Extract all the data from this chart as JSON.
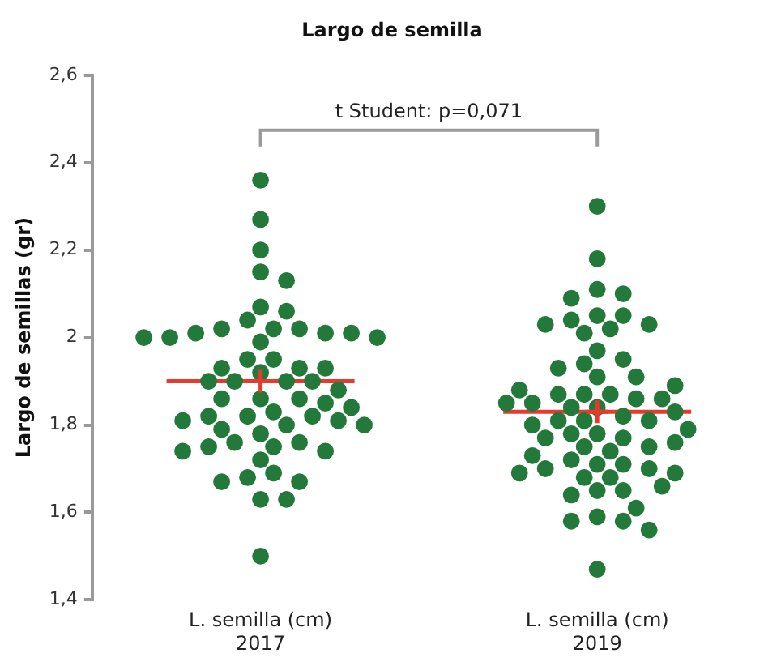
{
  "chart_data": {
    "type": "scatter",
    "title": "Largo de semilla",
    "ylabel": "Largo de semillas (gr)",
    "categories": [
      "L. semilla (cm)\n2017",
      "L. semilla (cm)\n2019"
    ],
    "ylim": [
      1.4,
      2.6
    ],
    "yticks": [
      {
        "value": 1.4,
        "label": "1,4"
      },
      {
        "value": 1.6,
        "label": "1,6"
      },
      {
        "value": 1.8,
        "label": "1,8"
      },
      2,
      {
        "value": 2.2,
        "label": "2,2"
      },
      {
        "value": 2.4,
        "label": "2,4"
      },
      {
        "value": 2.6,
        "label": "2,6"
      }
    ],
    "grid": false,
    "legend": false,
    "annotations": [
      "t Student: p=0,071"
    ],
    "ref_lines": [
      {
        "axis": "y",
        "value": 1.9,
        "color": "#e8392f"
      },
      {
        "axis": "y",
        "value": 1.83,
        "color": "#e8392f"
      }
    ],
    "series": [
      {
        "color": "#23793a",
        "marker": "circle",
        "x": [
          "L. semilla (cm)\n2017",
          "L. semilla (cm)\n2017",
          "L. semilla (cm)\n2017",
          "L. semilla (cm)\n2017",
          "L. semilla (cm)\n2017",
          "L. semilla (cm)\n2017",
          "L. semilla (cm)\n2017",
          "L. semilla (cm)\n2017",
          "L. semilla (cm)\n2017",
          "L. semilla (cm)\n2017",
          "L. semilla (cm)\n2017",
          "L. semilla (cm)\n2017",
          "L. semilla (cm)\n2017",
          "L. semilla (cm)\n2017",
          "L. semilla (cm)\n2017",
          "L. semilla (cm)\n2017",
          "L. semilla (cm)\n2017",
          "L. semilla (cm)\n2017",
          "L. semilla (cm)\n2017",
          "L. semilla (cm)\n2017",
          "L. semilla (cm)\n2017",
          "L. semilla (cm)\n2017",
          "L. semilla (cm)\n2017",
          "L. semilla (cm)\n2017",
          "L. semilla (cm)\n2017",
          "L. semilla (cm)\n2017",
          "L. semilla (cm)\n2017",
          "L. semilla (cm)\n2017",
          "L. semilla (cm)\n2017",
          "L. semilla (cm)\n2017",
          "L. semilla (cm)\n2017",
          "L. semilla (cm)\n2017",
          "L. semilla (cm)\n2017",
          "L. semilla (cm)\n2017",
          "L. semilla (cm)\n2017",
          "L. semilla (cm)\n2017",
          "L. semilla (cm)\n2017",
          "L. semilla (cm)\n2017",
          "L. semilla (cm)\n2017",
          "L. semilla (cm)\n2017",
          "L. semilla (cm)\n2017",
          "L. semilla (cm)\n2017",
          "L. semilla (cm)\n2017",
          "L. semilla (cm)\n2017",
          "L. semilla (cm)\n2017",
          "L. semilla (cm)\n2017",
          "L. semilla (cm)\n2017",
          "L. semilla (cm)\n2017",
          "L. semilla (cm)\n2017",
          "L. semilla (cm)\n2017",
          "L. semilla (cm)\n2017",
          "L. semilla (cm)\n2017",
          "L. semilla (cm)\n2017",
          "L. semilla (cm)\n2017",
          "L. semilla (cm)\n2017",
          "L. semilla (cm)\n2017",
          "L. semilla (cm)\n2017",
          "L. semilla (cm)\n2017"
        ],
        "values": [
          2.36,
          2.27,
          2.2,
          2.15,
          2.13,
          2.07,
          2.06,
          2.04,
          2.02,
          2.02,
          2.02,
          2.01,
          2.01,
          2.01,
          2.0,
          2.0,
          2.0,
          1.99,
          1.95,
          1.95,
          1.93,
          1.93,
          1.93,
          1.92,
          1.9,
          1.9,
          1.9,
          1.9,
          1.86,
          1.86,
          1.86,
          1.85,
          1.83,
          1.82,
          1.82,
          1.82,
          1.81,
          1.81,
          1.8,
          1.8,
          1.78,
          1.76,
          1.76,
          1.75,
          1.75,
          1.74,
          1.74,
          1.72,
          1.69,
          1.68,
          1.67,
          1.67,
          1.63,
          1.63,
          1.5,
          1.88,
          1.84,
          1.79
        ]
      },
      {
        "color": "#23793a",
        "marker": "circle",
        "x": [
          "L. semilla (cm)\n2019",
          "L. semilla (cm)\n2019",
          "L. semilla (cm)\n2019",
          "L. semilla (cm)\n2019",
          "L. semilla (cm)\n2019",
          "L. semilla (cm)\n2019",
          "L. semilla (cm)\n2019",
          "L. semilla (cm)\n2019",
          "L. semilla (cm)\n2019",
          "L. semilla (cm)\n2019",
          "L. semilla (cm)\n2019",
          "L. semilla (cm)\n2019",
          "L. semilla (cm)\n2019",
          "L. semilla (cm)\n2019",
          "L. semilla (cm)\n2019",
          "L. semilla (cm)\n2019",
          "L. semilla (cm)\n2019",
          "L. semilla (cm)\n2019",
          "L. semilla (cm)\n2019",
          "L. semilla (cm)\n2019",
          "L. semilla (cm)\n2019",
          "L. semilla (cm)\n2019",
          "L. semilla (cm)\n2019",
          "L. semilla (cm)\n2019",
          "L. semilla (cm)\n2019",
          "L. semilla (cm)\n2019",
          "L. semilla (cm)\n2019",
          "L. semilla (cm)\n2019",
          "L. semilla (cm)\n2019",
          "L. semilla (cm)\n2019",
          "L. semilla (cm)\n2019",
          "L. semilla (cm)\n2019",
          "L. semilla (cm)\n2019",
          "L. semilla (cm)\n2019",
          "L. semilla (cm)\n2019",
          "L. semilla (cm)\n2019",
          "L. semilla (cm)\n2019",
          "L. semilla (cm)\n2019",
          "L. semilla (cm)\n2019",
          "L. semilla (cm)\n2019",
          "L. semilla (cm)\n2019",
          "L. semilla (cm)\n2019",
          "L. semilla (cm)\n2019",
          "L. semilla (cm)\n2019",
          "L. semilla (cm)\n2019",
          "L. semilla (cm)\n2019",
          "L. semilla (cm)\n2019",
          "L. semilla (cm)\n2019",
          "L. semilla (cm)\n2019",
          "L. semilla (cm)\n2019",
          "L. semilla (cm)\n2019",
          "L. semilla (cm)\n2019",
          "L. semilla (cm)\n2019",
          "L. semilla (cm)\n2019",
          "L. semilla (cm)\n2019",
          "L. semilla (cm)\n2019",
          "L. semilla (cm)\n2019",
          "L. semilla (cm)\n2019",
          "L. semilla (cm)\n2019",
          "L. semilla (cm)\n2019",
          "L. semilla (cm)\n2019",
          "L. semilla (cm)\n2019",
          "L. semilla (cm)\n2019",
          "L. semilla (cm)\n2019"
        ],
        "values": [
          2.3,
          2.18,
          2.11,
          2.1,
          2.09,
          2.05,
          2.05,
          2.04,
          2.03,
          2.03,
          2.02,
          2.01,
          1.97,
          1.95,
          1.94,
          1.93,
          1.91,
          1.91,
          1.87,
          1.87,
          1.87,
          1.86,
          1.86,
          1.85,
          1.84,
          1.84,
          1.82,
          1.81,
          1.81,
          1.81,
          1.8,
          1.78,
          1.78,
          1.77,
          1.77,
          1.75,
          1.75,
          1.74,
          1.72,
          1.71,
          1.71,
          1.7,
          1.7,
          1.69,
          1.68,
          1.68,
          1.65,
          1.65,
          1.64,
          1.59,
          1.58,
          1.58,
          1.56,
          1.47,
          1.88,
          1.83,
          1.85,
          1.79,
          1.76,
          1.73,
          1.69,
          1.66,
          1.61,
          1.89
        ]
      },
      {
        "color": "#e8392f",
        "marker": "cross",
        "x": [
          "L. semilla (cm)\n2017",
          "L. semilla (cm)\n2019"
        ],
        "values": [
          1.9,
          1.83
        ]
      }
    ]
  }
}
